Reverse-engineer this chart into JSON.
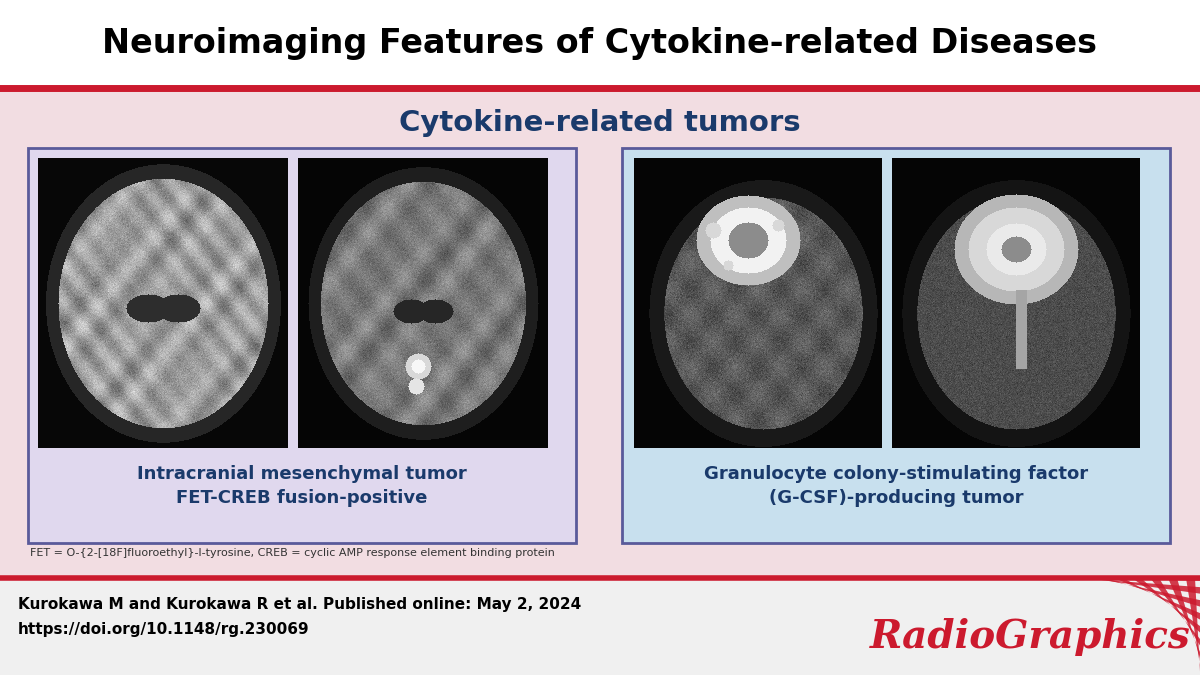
{
  "title": "Neuroimaging Features of Cytokine-related Diseases",
  "subtitle": "Cytokine-related tumors",
  "title_color": "#000000",
  "subtitle_color": "#1a3a6b",
  "bg_color": "#f2dde2",
  "header_bg": "#ffffff",
  "left_panel_bg": "#e0d8ee",
  "right_panel_bg": "#c8e0ee",
  "left_caption": "Intracranial mesenchymal tumor\nFET-CREB fusion-positive",
  "right_caption": "Granulocyte colony-stimulating factor\n(G-CSF)-producing tumor",
  "caption_color": "#1a3a6b",
  "footnote": "FET = O-{2-[18F]fluoroethyl}-l-tyrosine, CREB = cyclic AMP response element binding protein",
  "author_line1": "Kurokawa M and Kurokawa R et al. Published online: May 2, 2024",
  "author_line2": "https://doi.org/10.1148/rg.230069",
  "radiographics_color": "#cc1a2e",
  "top_bar_color": "#cc1a2e",
  "panel_border_color": "#5a5a9a",
  "bottom_bar_color": "#cc1a2e"
}
